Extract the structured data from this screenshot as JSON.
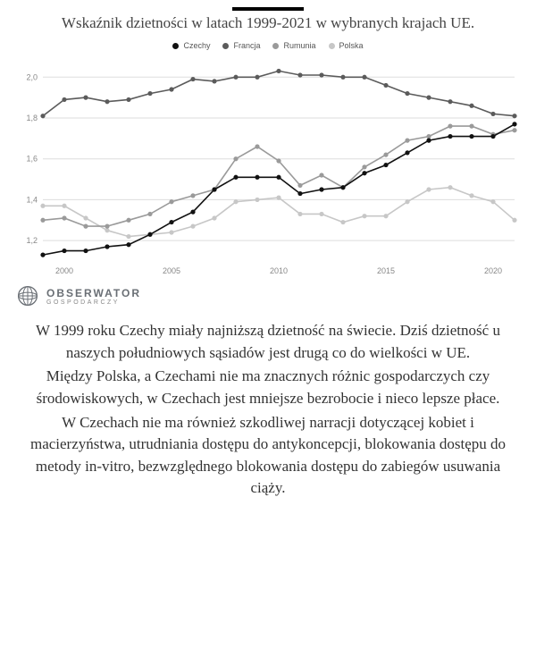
{
  "title": "Wskaźnik dzietności w latach 1999-2021 w wybranych krajach UE.",
  "chart": {
    "type": "line",
    "background_color": "#ffffff",
    "grid_color": "#dddddd",
    "axis_text_color": "#888888",
    "axis_fontsize": 9,
    "legend_fontsize": 9,
    "x_years": [
      1999,
      2000,
      2001,
      2002,
      2003,
      2004,
      2005,
      2006,
      2007,
      2008,
      2009,
      2010,
      2011,
      2012,
      2013,
      2014,
      2015,
      2016,
      2017,
      2018,
      2019,
      2020,
      2021
    ],
    "yticks": [
      1.2,
      1.4,
      1.6,
      1.8,
      2.0
    ],
    "ylim": [
      1.1,
      2.08
    ],
    "xticks": [
      2000,
      2005,
      2010,
      2015,
      2020
    ],
    "marker_radius": 2.6,
    "line_width": 1.6,
    "legend": [
      {
        "label": "Czechy",
        "color": "#111111"
      },
      {
        "label": "Francja",
        "color": "#5b5b5b"
      },
      {
        "label": "Rumunia",
        "color": "#9a9a9a"
      },
      {
        "label": "Polska",
        "color": "#c7c7c7"
      }
    ],
    "series": {
      "Czechy": {
        "color": "#111111",
        "values": [
          1.13,
          1.15,
          1.15,
          1.17,
          1.18,
          1.23,
          1.29,
          1.34,
          1.45,
          1.51,
          1.51,
          1.51,
          1.43,
          1.45,
          1.46,
          1.53,
          1.57,
          1.63,
          1.69,
          1.71,
          1.71,
          1.71,
          1.77
        ]
      },
      "Francja": {
        "color": "#5b5b5b",
        "values": [
          1.81,
          1.89,
          1.9,
          1.88,
          1.89,
          1.92,
          1.94,
          1.99,
          1.98,
          2.0,
          2.0,
          2.03,
          2.01,
          2.01,
          2.0,
          2.0,
          1.96,
          1.92,
          1.9,
          1.88,
          1.86,
          1.82,
          1.81
        ]
      },
      "Rumunia": {
        "color": "#9a9a9a",
        "values": [
          1.3,
          1.31,
          1.27,
          1.27,
          1.3,
          1.33,
          1.39,
          1.42,
          1.45,
          1.6,
          1.66,
          1.59,
          1.47,
          1.52,
          1.46,
          1.56,
          1.62,
          1.69,
          1.71,
          1.76,
          1.76,
          1.72,
          1.74
        ]
      },
      "Polska": {
        "color": "#c7c7c7",
        "values": [
          1.37,
          1.37,
          1.31,
          1.25,
          1.22,
          1.23,
          1.24,
          1.27,
          1.31,
          1.39,
          1.4,
          1.41,
          1.33,
          1.33,
          1.29,
          1.32,
          1.32,
          1.39,
          1.45,
          1.46,
          1.42,
          1.39,
          1.3
        ]
      }
    }
  },
  "brand": {
    "line1": "OBSERWATOR",
    "line2": "GOSPODARCZY"
  },
  "paragraphs": [
    "W 1999 roku Czechy miały najniższą dzietność na świecie. Dziś dzietność u naszych południowych sąsiadów jest drugą co do wielkości w UE.",
    "Między Polska, a Czechami nie ma znacznych różnic gospodarczych czy środowiskowych, w Czechach jest mniejsze bezrobocie i nieco lepsze płace.",
    "W Czechach nie ma również szkodliwej narracji dotyczącej kobiet i macierzyństwa, utrudniania dostępu do antykoncepcji, blokowania dostępu do metody in-vitro, bezwzględnego blokowania dostępu do zabiegów usuwania ciąży."
  ]
}
